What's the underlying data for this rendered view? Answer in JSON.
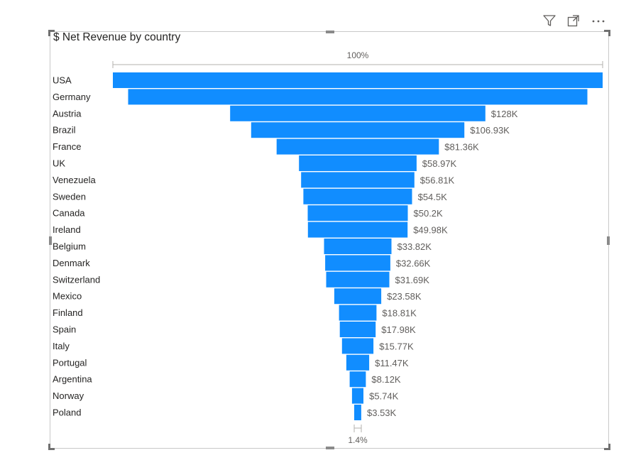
{
  "toolbar": {
    "icons": [
      "filter-icon",
      "focus-mode-icon",
      "more-options-icon"
    ]
  },
  "colors": {
    "bar": "#118DFF",
    "label": "#605E5C",
    "category": "#252423",
    "axis": "#8a8886"
  },
  "chart_data": {
    "type": "funnel",
    "title": "$ Net Revenue by country",
    "top_percent_label": "100%",
    "bottom_percent_label": "1.4%",
    "categories": [
      "USA",
      "Germany",
      "Austria",
      "Brazil",
      "France",
      "UK",
      "Venezuela",
      "Sweden",
      "Canada",
      "Ireland",
      "Belgium",
      "Denmark",
      "Switzerland",
      "Mexico",
      "Finland",
      "Spain",
      "Italy",
      "Portugal",
      "Argentina",
      "Norway",
      "Poland"
    ],
    "values": [
      245600,
      230300,
      128000,
      106930,
      81360,
      58970,
      56810,
      54500,
      50200,
      49980,
      33820,
      32660,
      31690,
      23580,
      18810,
      17980,
      15770,
      11470,
      8120,
      5740,
      3530
    ],
    "data_labels": [
      "",
      "",
      "$128K",
      "$106.93K",
      "$81.36K",
      "$58.97K",
      "$56.81K",
      "$54.5K",
      "$50.2K",
      "$49.98K",
      "$33.82K",
      "$32.66K",
      "$31.69K",
      "$23.58K",
      "$18.81K",
      "$17.98K",
      "$15.77K",
      "$11.47K",
      "$8.12K",
      "$5.74K",
      "$3.53K"
    ]
  }
}
